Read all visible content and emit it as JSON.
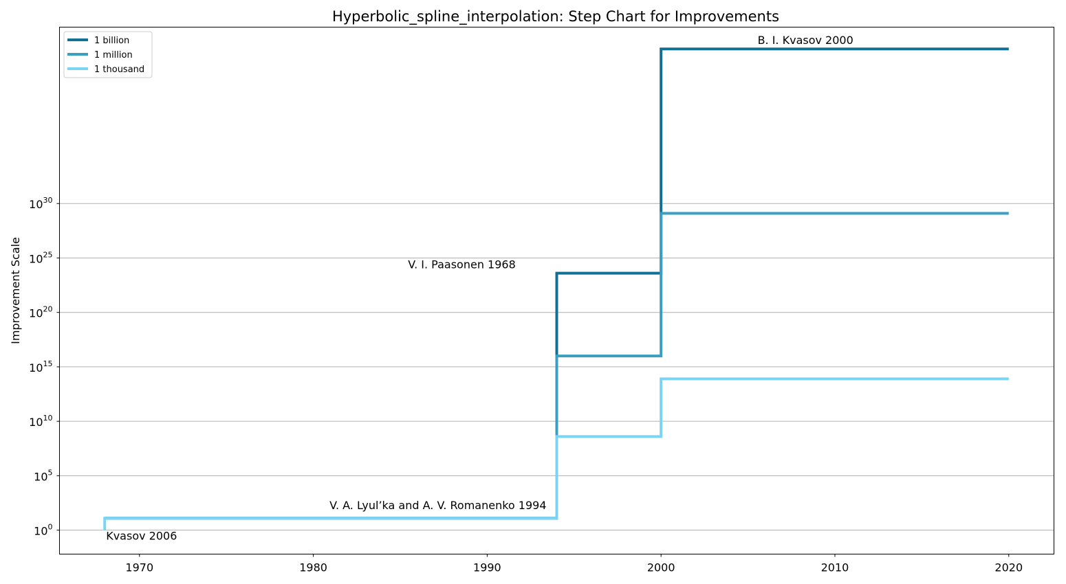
{
  "chart_data": {
    "type": "line",
    "step": "post",
    "title": "Hyperbolic_spline_interpolation: Step Chart for Improvements",
    "xlabel": "",
    "ylabel": "Improvement Scale",
    "x_scale": "linear",
    "y_scale": "log",
    "xlim": [
      1965.4,
      2022.6
    ],
    "ylim_log10": [
      -2.2,
      46.2
    ],
    "x_ticks": [
      1970,
      1980,
      1990,
      2000,
      2010,
      2020
    ],
    "y_ticks_log10": [
      0,
      5,
      10,
      15,
      20,
      25,
      30
    ],
    "y_tick_base": "10",
    "grid": "y-major",
    "legend_position": "top-left",
    "series": [
      {
        "name": "1 billion",
        "color": "#137092",
        "x": [
          1968,
          1994,
          2000,
          2020
        ],
        "y_log10": [
          1.1,
          23.6,
          44.2,
          44.2
        ]
      },
      {
        "name": "1 million",
        "color": "#3a9fc0",
        "x": [
          1968,
          1994,
          2000,
          2020
        ],
        "y_log10": [
          1.1,
          16.0,
          29.1,
          29.1
        ]
      },
      {
        "name": "1 thousand",
        "color": "#7bd4f4",
        "x": [
          1968,
          1968,
          1994,
          2000,
          2020
        ],
        "y_log10": [
          0,
          1.1,
          8.6,
          13.9,
          13.9
        ]
      }
    ],
    "annotations": [
      {
        "text": "Kvasov 2006",
        "x": 1968,
        "y_log10": 0
      },
      {
        "text": "V. A. Lyul’ka and A. V. Romanenko 1994",
        "x": 1994,
        "y_log10": 1.1
      },
      {
        "text": "V. I. Paasonen 1968",
        "x": 1994,
        "y_log10": 23.6
      },
      {
        "text": "B. I. Kvasov 2000",
        "x": 2000,
        "y_log10": 44.2
      }
    ]
  }
}
